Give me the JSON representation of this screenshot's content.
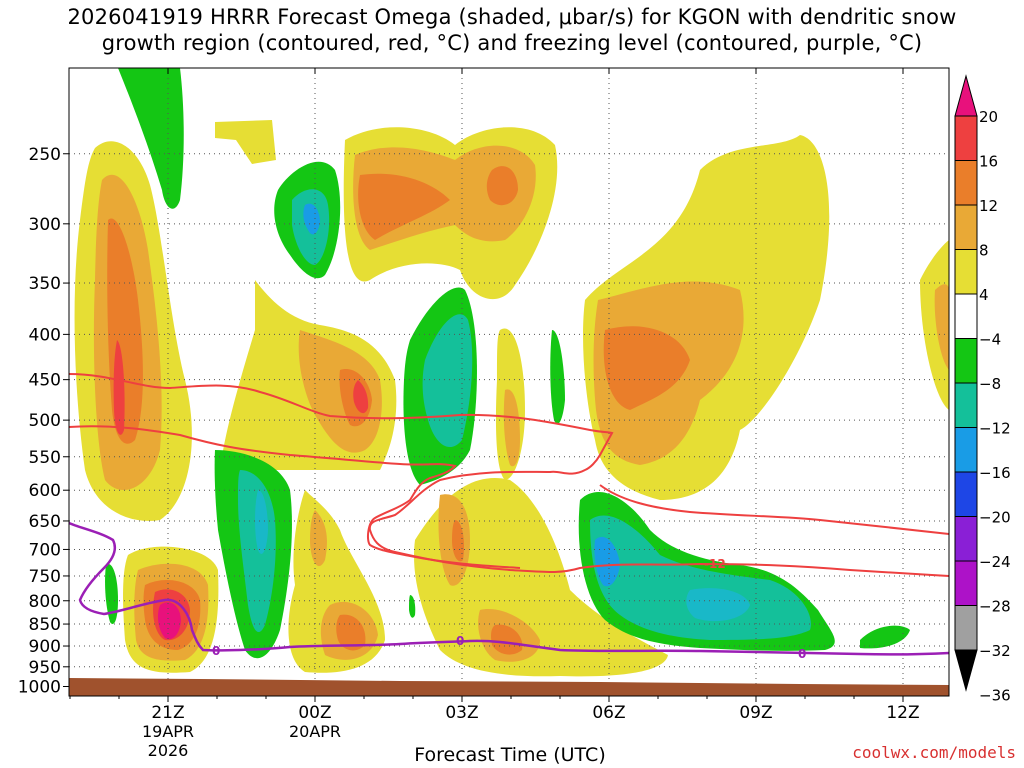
{
  "title_lines": [
    "2026041919 HRRR Forecast Omega (shaded, μbar/s) for KGON with dendritic snow",
    "growth region (contoured, red, °C) and freezing level (contoured, purple, °C)"
  ],
  "watermark": "coolwx.com/models",
  "chart_data": {
    "type": "heatmap",
    "xlabel": "Forecast Time (UTC)",
    "ylabel": "",
    "x_ticks": [
      "21Z",
      "00Z",
      "03Z",
      "06Z",
      "09Z",
      "12Z"
    ],
    "x_tick_dates": {
      "21Z": [
        "19APR",
        "2026"
      ],
      "00Z": [
        "20APR"
      ]
    },
    "y_ticks": [
      250,
      300,
      350,
      400,
      450,
      500,
      550,
      600,
      650,
      700,
      750,
      800,
      850,
      900,
      950,
      1000
    ],
    "ylim": [
      1025,
      200
    ],
    "y_scale": "log-pressure",
    "grid": true,
    "colorbar": {
      "ticks": [
        "20",
        "16",
        "12",
        "8",
        "4",
        "−4",
        "−8",
        "−12",
        "−16",
        "−20",
        "−24",
        "−28",
        "−32",
        "−36"
      ],
      "colors": [
        "#e8117c",
        "#ee4040",
        "#ea7e2a",
        "#e9a936",
        "#e6de34",
        "#ffffff",
        "#14c614",
        "#14c09a",
        "#199ce6",
        "#1e46e6",
        "#8a1fd6",
        "#ad12c8",
        "#a0a0a0",
        "#000000"
      ]
    },
    "contour_labels": {
      "dgz": "-12",
      "freezing": "0"
    },
    "colors": {
      "dgz": "#ee4040",
      "freezing": "#9b1fb5",
      "ground": "#a0522d"
    }
  }
}
